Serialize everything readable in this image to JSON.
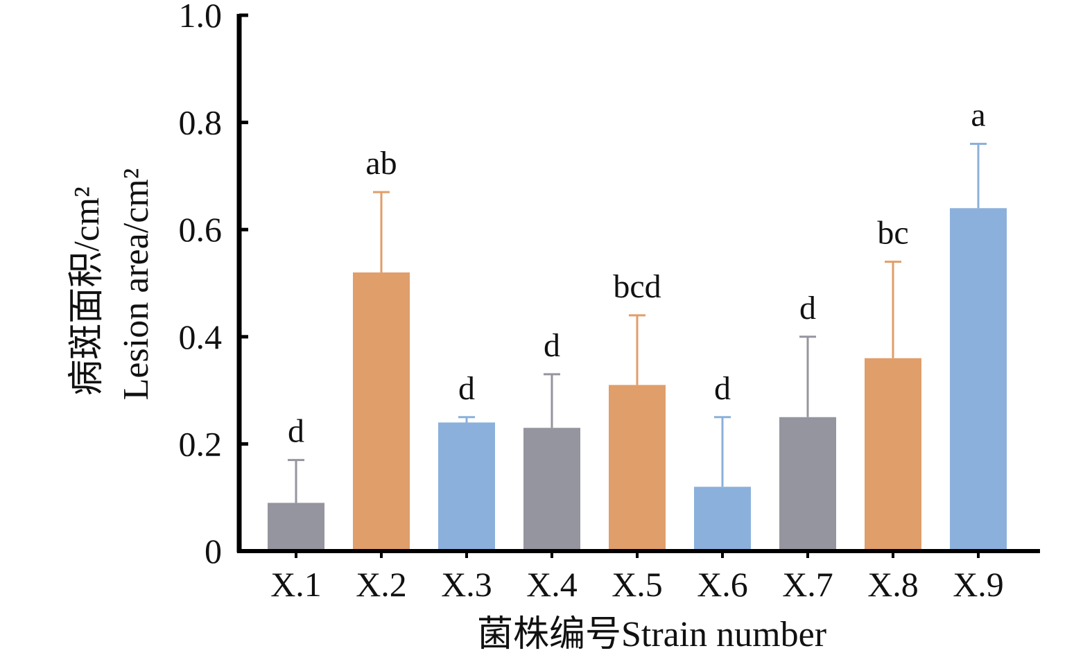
{
  "chart_data": {
    "type": "bar",
    "categories": [
      "X.1",
      "X.2",
      "X.3",
      "X.4",
      "X.5",
      "X.6",
      "X.7",
      "X.8",
      "X.9"
    ],
    "values": [
      0.09,
      0.52,
      0.24,
      0.23,
      0.31,
      0.12,
      0.25,
      0.36,
      0.64
    ],
    "errors": [
      0.08,
      0.15,
      0.01,
      0.1,
      0.13,
      0.13,
      0.15,
      0.18,
      0.12
    ],
    "significance": [
      "d",
      "ab",
      "d",
      "d",
      "bcd",
      "d",
      "d",
      "bc",
      "a"
    ],
    "bar_colors": [
      "#95959f",
      "#e09e6a",
      "#8bb0db",
      "#95959f",
      "#e09e6a",
      "#8bb0db",
      "#95959f",
      "#e09e6a",
      "#8bb0db"
    ],
    "ylim": [
      0,
      1.0
    ],
    "yticks": [
      0,
      0.2,
      0.4,
      0.6,
      0.8,
      1.0
    ],
    "ytick_labels": [
      "0",
      "0.2",
      "0.4",
      "0.6",
      "0.8",
      "1.0"
    ],
    "ylabel_cn": "病斑面积/cm²",
    "ylabel_en": "Lesion area/cm²",
    "xlabel": "菌株编号Strain number"
  }
}
